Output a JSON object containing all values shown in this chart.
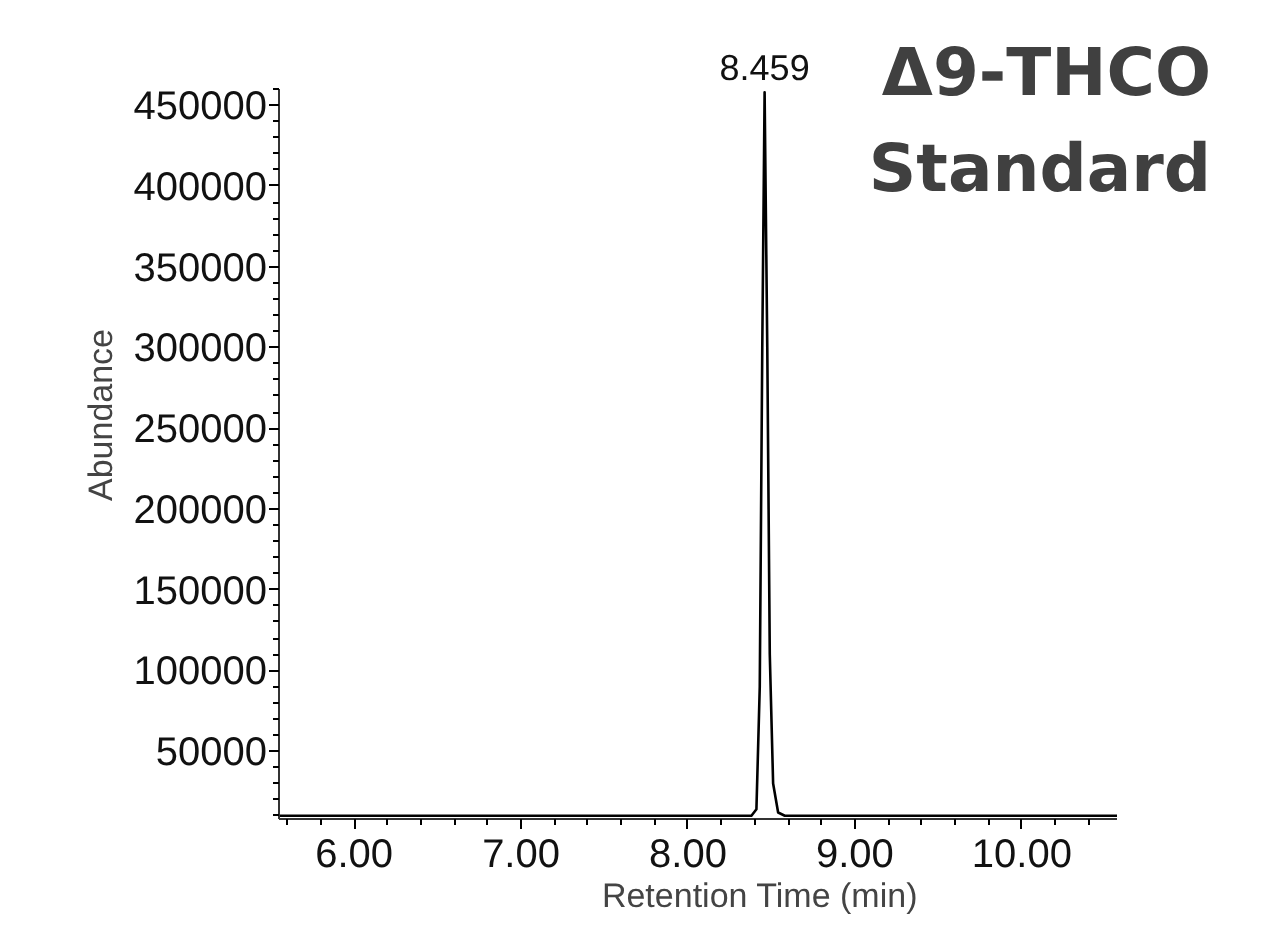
{
  "chart_data": {
    "type": "line",
    "title": "Δ9-THCO Standard",
    "xlabel": "Retention Time (min)",
    "ylabel": "Abundance",
    "x": [
      5.55,
      6.0,
      7.0,
      8.0,
      8.38,
      8.41,
      8.43,
      8.445,
      8.459,
      8.475,
      8.49,
      8.51,
      8.54,
      8.58,
      9.0,
      10.0,
      10.57
    ],
    "series": [
      {
        "color": "#000000",
        "values": [
          10000,
          10000,
          10000,
          10000,
          10000,
          14000,
          90000,
          300000,
          458000,
          300000,
          110000,
          30000,
          12000,
          10000,
          10000,
          10000,
          10000
        ]
      }
    ],
    "xlim": [
      5.55,
      10.57
    ],
    "ylim": [
      8000,
      460000
    ],
    "xticks": [
      {
        "value": 6,
        "label": "6.00"
      },
      {
        "value": 7,
        "label": "7.00"
      },
      {
        "value": 8,
        "label": "8.00"
      },
      {
        "value": 9,
        "label": "9.00"
      },
      {
        "value": 10,
        "label": "10.00"
      }
    ],
    "yticks": [
      50000,
      100000,
      150000,
      200000,
      250000,
      300000,
      350000,
      400000,
      450000
    ],
    "annotations": [
      {
        "text": "8.459",
        "x": 8.459,
        "y": 458000
      }
    ],
    "grid": false,
    "marker": "none",
    "line_style": "solid"
  }
}
